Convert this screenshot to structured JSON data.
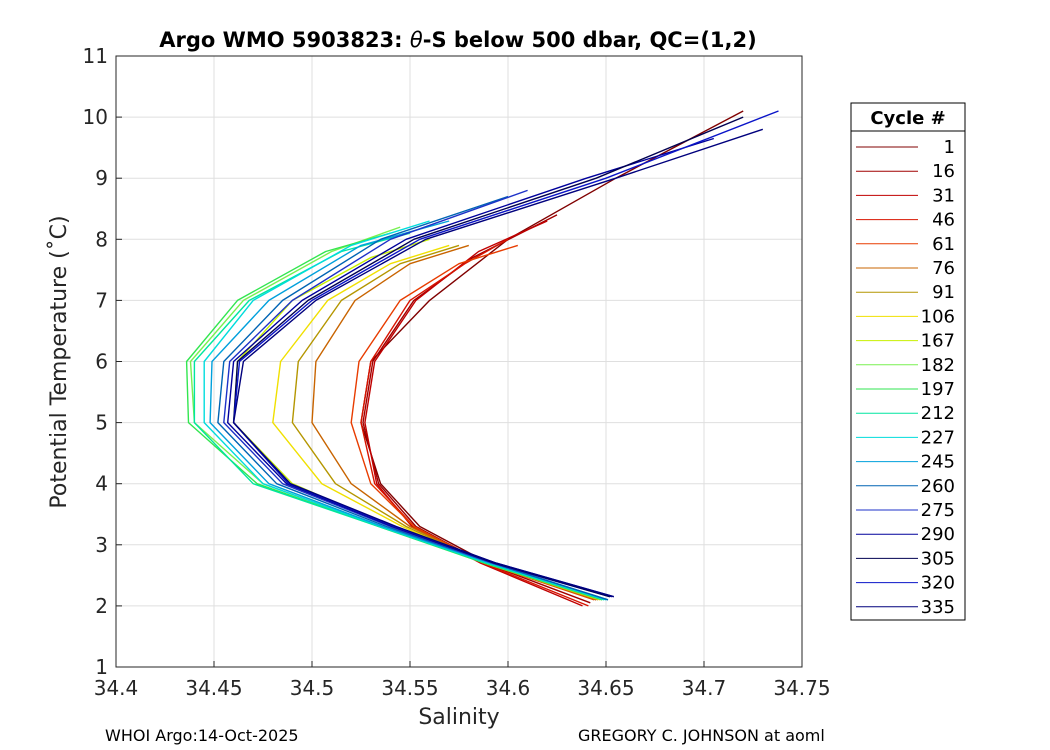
{
  "chart_data": {
    "type": "line",
    "title_prefix": "Argo WMO 5903823: ",
    "title_theta": "θ",
    "title_suffix": "-S below 500 dbar,  QC=(1,2)",
    "xlabel": "Salinity",
    "ylabel": "Potential Temperature (˚C)",
    "xlim": [
      34.4,
      34.75
    ],
    "ylim": [
      1,
      11
    ],
    "x_ticks": [
      "34.4",
      "34.45",
      "34.5",
      "34.55",
      "34.6",
      "34.65",
      "34.7",
      "34.75"
    ],
    "y_ticks": [
      "1",
      "2",
      "3",
      "4",
      "5",
      "6",
      "7",
      "8",
      "9",
      "10",
      "11"
    ],
    "grid": true,
    "legend_placement": "right, outside plot",
    "legend_title": "Cycle #",
    "series": [
      {
        "name": "1",
        "color": "#800000",
        "salinity": [
          34.645,
          34.59,
          34.555,
          34.535,
          34.525,
          34.53,
          34.56,
          34.6,
          34.655,
          34.72
        ],
        "theta": [
          2.1,
          2.7,
          3.3,
          4.0,
          5.0,
          6.0,
          7.0,
          8.0,
          9.0,
          10.1
        ]
      },
      {
        "name": "16",
        "color": "#a00000",
        "salinity": [
          34.642,
          34.588,
          34.553,
          34.534,
          34.526,
          34.531,
          34.552,
          34.582,
          34.625
        ],
        "theta": [
          2.05,
          2.7,
          3.3,
          4.0,
          5.0,
          6.0,
          7.0,
          7.7,
          8.4
        ]
      },
      {
        "name": "31",
        "color": "#c00000",
        "salinity": [
          34.638,
          34.586,
          34.551,
          34.533,
          34.527,
          34.532,
          34.553,
          34.585,
          34.62
        ],
        "theta": [
          2.0,
          2.7,
          3.3,
          4.0,
          5.0,
          6.0,
          7.0,
          7.8,
          8.3
        ]
      },
      {
        "name": "46",
        "color": "#d81400",
        "salinity": [
          34.641,
          34.587,
          34.552,
          34.532,
          34.525,
          34.53,
          34.55,
          34.578,
          34.6
        ],
        "theta": [
          2.0,
          2.7,
          3.3,
          4.0,
          5.0,
          6.0,
          7.0,
          7.6,
          8.0
        ]
      },
      {
        "name": "61",
        "color": "#e83c00",
        "salinity": [
          34.644,
          34.588,
          34.552,
          34.53,
          34.52,
          34.524,
          34.545,
          34.575,
          34.605
        ],
        "theta": [
          2.1,
          2.7,
          3.3,
          4.0,
          5.0,
          6.0,
          7.0,
          7.6,
          7.9
        ]
      },
      {
        "name": "76",
        "color": "#c86400",
        "salinity": [
          34.645,
          34.588,
          34.55,
          34.52,
          34.5,
          34.502,
          34.522,
          34.55,
          34.58
        ],
        "theta": [
          2.1,
          2.7,
          3.3,
          4.0,
          5.0,
          6.0,
          7.0,
          7.6,
          7.9
        ]
      },
      {
        "name": "91",
        "color": "#b49600",
        "salinity": [
          34.646,
          34.588,
          34.548,
          34.512,
          34.49,
          34.493,
          34.515,
          34.545,
          34.575
        ],
        "theta": [
          2.1,
          2.7,
          3.3,
          4.0,
          5.0,
          6.0,
          7.0,
          7.6,
          7.9
        ]
      },
      {
        "name": "106",
        "color": "#f0e000",
        "salinity": [
          34.647,
          34.588,
          34.546,
          34.505,
          34.48,
          34.484,
          34.508,
          34.54,
          34.57
        ],
        "theta": [
          2.1,
          2.7,
          3.3,
          4.0,
          5.0,
          6.0,
          7.0,
          7.6,
          7.9
        ]
      },
      {
        "name": "167",
        "color": "#c8f000",
        "salinity": [
          34.648,
          34.588,
          34.54,
          34.49,
          34.46,
          34.462,
          34.49,
          34.53,
          34.56
        ],
        "theta": [
          2.1,
          2.7,
          3.3,
          4.0,
          5.0,
          6.0,
          7.0,
          7.7,
          8.0
        ]
      },
      {
        "name": "182",
        "color": "#78f050",
        "salinity": [
          34.648,
          34.588,
          34.535,
          34.475,
          34.44,
          34.438,
          34.465,
          34.51,
          34.545
        ],
        "theta": [
          2.1,
          2.7,
          3.3,
          4.0,
          5.0,
          6.0,
          7.0,
          7.8,
          8.2
        ]
      },
      {
        "name": "197",
        "color": "#32e650",
        "salinity": [
          34.648,
          34.588,
          34.534,
          34.472,
          34.437,
          34.436,
          34.462,
          34.507,
          34.54
        ],
        "theta": [
          2.1,
          2.7,
          3.3,
          4.0,
          5.0,
          6.0,
          7.0,
          7.8,
          8.1
        ]
      },
      {
        "name": "212",
        "color": "#00e6a0",
        "salinity": [
          34.649,
          34.589,
          34.534,
          34.47,
          34.44,
          34.44,
          34.468,
          34.515,
          34.55
        ],
        "theta": [
          2.1,
          2.7,
          3.3,
          4.0,
          5.0,
          6.0,
          7.0,
          7.8,
          8.1
        ]
      },
      {
        "name": "227",
        "color": "#00dcdc",
        "salinity": [
          34.65,
          34.59,
          34.535,
          34.475,
          34.445,
          34.445,
          34.47,
          34.52,
          34.56
        ],
        "theta": [
          2.1,
          2.7,
          3.3,
          4.0,
          5.0,
          6.0,
          7.0,
          7.9,
          8.3
        ]
      },
      {
        "name": "245",
        "color": "#00a0dc",
        "salinity": [
          34.651,
          34.591,
          34.536,
          34.478,
          34.448,
          34.449,
          34.478,
          34.525,
          34.57
        ],
        "theta": [
          2.1,
          2.7,
          3.3,
          4.0,
          5.0,
          6.0,
          7.0,
          7.9,
          8.3
        ]
      },
      {
        "name": "260",
        "color": "#0064b4",
        "salinity": [
          34.651,
          34.592,
          34.538,
          34.482,
          34.452,
          34.455,
          34.485,
          34.535,
          34.6
        ],
        "theta": [
          2.1,
          2.7,
          3.3,
          4.0,
          5.0,
          6.0,
          7.0,
          8.0,
          8.7
        ]
      },
      {
        "name": "275",
        "color": "#1e32c8",
        "salinity": [
          34.652,
          34.592,
          34.54,
          34.485,
          34.455,
          34.458,
          34.49,
          34.54,
          34.61
        ],
        "theta": [
          2.15,
          2.7,
          3.3,
          4.0,
          5.0,
          6.0,
          7.0,
          8.0,
          8.8
        ]
      },
      {
        "name": "290",
        "color": "#00009b",
        "salinity": [
          34.653,
          34.593,
          34.541,
          34.487,
          34.457,
          34.46,
          34.495,
          34.548,
          34.64,
          34.705
        ],
        "theta": [
          2.15,
          2.7,
          3.3,
          4.0,
          5.0,
          6.0,
          7.0,
          8.0,
          9.0,
          9.65
        ]
      },
      {
        "name": "305",
        "color": "#000050",
        "salinity": [
          34.652,
          34.593,
          34.542,
          34.488,
          34.46,
          34.462,
          34.498,
          34.552,
          34.645,
          34.72
        ],
        "theta": [
          2.15,
          2.7,
          3.3,
          4.0,
          5.0,
          6.0,
          7.0,
          8.0,
          9.0,
          10.0
        ]
      },
      {
        "name": "320",
        "color": "#0a14c8",
        "salinity": [
          34.654,
          34.594,
          34.542,
          34.488,
          34.46,
          34.463,
          34.5,
          34.555,
          34.65,
          34.738
        ],
        "theta": [
          2.15,
          2.7,
          3.3,
          4.0,
          5.0,
          6.0,
          7.0,
          8.0,
          9.0,
          10.1
        ]
      },
      {
        "name": "335",
        "color": "#00007d",
        "salinity": [
          34.654,
          34.594,
          34.543,
          34.489,
          34.46,
          34.465,
          34.502,
          34.558,
          34.655,
          34.73
        ],
        "theta": [
          2.15,
          2.7,
          3.3,
          4.0,
          5.0,
          6.0,
          7.0,
          8.0,
          9.0,
          9.8
        ]
      }
    ]
  },
  "footer": {
    "left": "WHOI Argo:14-Oct-2025",
    "right": "GREGORY C. JOHNSON at aoml"
  }
}
